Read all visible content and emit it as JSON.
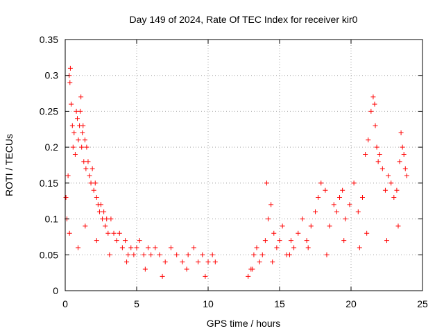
{
  "chart_data": {
    "type": "scatter",
    "title": "Day 149 of 2024, Rate Of TEC Index for receiver kir0",
    "xlabel": "GPS time / hours",
    "ylabel": "ROTI / TECUs",
    "xlim": [
      0,
      25
    ],
    "ylim": [
      0,
      0.35
    ],
    "x_ticks": [
      0,
      5,
      10,
      15,
      20,
      25
    ],
    "x_tick_labels": [
      "0",
      "5",
      "10",
      "15",
      "20",
      "25"
    ],
    "y_ticks": [
      0,
      0.05,
      0.1,
      0.15,
      0.2,
      0.25,
      0.3,
      0.35
    ],
    "y_tick_labels": [
      "0",
      "0.05",
      "0.1",
      "0.15",
      "0.2",
      "0.25",
      "0.3",
      "0.35"
    ],
    "grid": true,
    "marker": "+",
    "series": [
      {
        "name": "ROTI",
        "color": "#ff0000",
        "x": [
          0.05,
          0.12,
          0.2,
          0.28,
          0.33,
          0.36,
          0.42,
          0.5,
          0.55,
          0.62,
          0.7,
          0.78,
          0.85,
          0.92,
          1.0,
          1.05,
          1.1,
          1.15,
          1.2,
          1.25,
          1.3,
          1.38,
          1.45,
          1.5,
          1.6,
          1.7,
          1.8,
          1.9,
          2.0,
          2.1,
          2.2,
          2.3,
          2.4,
          2.5,
          2.6,
          2.7,
          2.8,
          2.9,
          3.0,
          3.2,
          3.4,
          3.6,
          3.8,
          4.0,
          4.2,
          4.4,
          4.6,
          4.8,
          5.0,
          5.2,
          5.5,
          5.8,
          6.0,
          6.3,
          6.6,
          7.0,
          7.4,
          7.8,
          8.2,
          8.6,
          9.0,
          9.3,
          9.6,
          10.0,
          10.3,
          10.5,
          0.3,
          0.9,
          1.4,
          2.2,
          3.1,
          4.3,
          5.6,
          6.8,
          8.5,
          9.8,
          12.8,
          13.0,
          13.2,
          13.4,
          13.6,
          13.8,
          14.0,
          14.1,
          14.2,
          14.4,
          14.6,
          14.8,
          15.0,
          15.2,
          15.5,
          15.8,
          16.0,
          16.3,
          16.6,
          16.9,
          17.2,
          17.5,
          17.7,
          17.9,
          18.2,
          18.5,
          18.8,
          19.0,
          19.2,
          19.4,
          19.6,
          19.9,
          20.2,
          20.5,
          20.8,
          21.0,
          21.2,
          21.4,
          21.55,
          21.65,
          21.7,
          21.8,
          21.9,
          22.0,
          22.2,
          22.4,
          22.6,
          22.8,
          23.0,
          23.2,
          23.4,
          23.5,
          23.6,
          23.7,
          23.8,
          23.9,
          13.1,
          14.5,
          15.7,
          17.0,
          18.3,
          19.5,
          20.6,
          21.1,
          22.5,
          23.3
        ],
        "y": [
          0.13,
          0.1,
          0.16,
          0.3,
          0.29,
          0.31,
          0.26,
          0.23,
          0.2,
          0.22,
          0.19,
          0.25,
          0.24,
          0.21,
          0.23,
          0.25,
          0.27,
          0.2,
          0.22,
          0.23,
          0.18,
          0.21,
          0.17,
          0.2,
          0.18,
          0.16,
          0.15,
          0.17,
          0.14,
          0.15,
          0.13,
          0.12,
          0.11,
          0.12,
          0.1,
          0.11,
          0.09,
          0.1,
          0.08,
          0.1,
          0.08,
          0.07,
          0.08,
          0.06,
          0.07,
          0.05,
          0.06,
          0.05,
          0.06,
          0.07,
          0.05,
          0.06,
          0.05,
          0.06,
          0.05,
          0.04,
          0.06,
          0.05,
          0.04,
          0.05,
          0.06,
          0.04,
          0.05,
          0.04,
          0.05,
          0.04,
          0.08,
          0.06,
          0.09,
          0.07,
          0.05,
          0.04,
          0.03,
          0.02,
          0.03,
          0.02,
          0.02,
          0.03,
          0.05,
          0.06,
          0.04,
          0.05,
          0.07,
          0.15,
          0.1,
          0.12,
          0.08,
          0.06,
          0.07,
          0.09,
          0.05,
          0.07,
          0.06,
          0.08,
          0.1,
          0.07,
          0.09,
          0.11,
          0.13,
          0.15,
          0.14,
          0.09,
          0.12,
          0.11,
          0.13,
          0.14,
          0.1,
          0.12,
          0.15,
          0.11,
          0.13,
          0.19,
          0.21,
          0.25,
          0.27,
          0.26,
          0.23,
          0.2,
          0.18,
          0.19,
          0.17,
          0.14,
          0.16,
          0.15,
          0.13,
          0.14,
          0.18,
          0.22,
          0.2,
          0.19,
          0.17,
          0.16,
          0.03,
          0.04,
          0.05,
          0.06,
          0.05,
          0.07,
          0.06,
          0.08,
          0.07,
          0.09
        ]
      }
    ]
  }
}
